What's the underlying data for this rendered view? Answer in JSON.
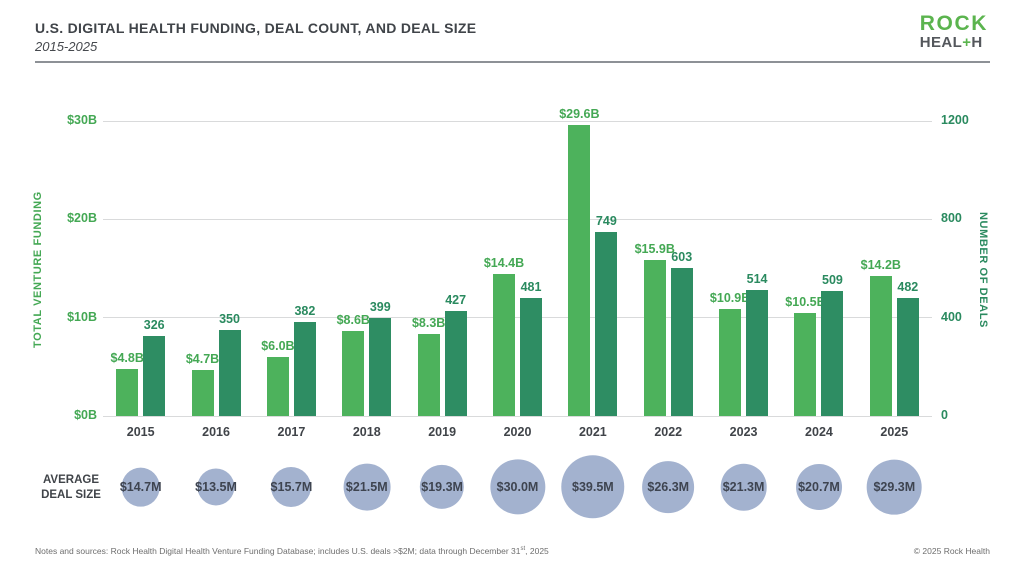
{
  "header": {
    "title": "U.S. DIGITAL HEALTH FUNDING, DEAL COUNT, AND DEAL SIZE",
    "subtitle": "2015-2025",
    "logo": {
      "line1": "ROCK",
      "line2_pre": "HEAL",
      "line2_plus": "+",
      "line2_post": "H"
    }
  },
  "chart_data": {
    "type": "bar",
    "title": "U.S. DIGITAL HEALTH FUNDING, DEAL COUNT, AND DEAL SIZE",
    "subtitle": "2015-2025",
    "categories": [
      "2015",
      "2016",
      "2017",
      "2018",
      "2019",
      "2020",
      "2021",
      "2022",
      "2023",
      "2024",
      "2025"
    ],
    "series": [
      {
        "name": "Total venture funding",
        "axis": "left",
        "unit": "$B",
        "values": [
          4.8,
          4.7,
          6.0,
          8.6,
          8.3,
          14.4,
          29.6,
          15.9,
          10.9,
          10.5,
          14.2
        ],
        "labels": [
          "$4.8B",
          "$4.7B",
          "$6.0B",
          "$8.6B",
          "$8.3B",
          "$14.4B",
          "$29.6B",
          "$15.9B",
          "$10.9B",
          "$10.5B",
          "$14.2B"
        ],
        "color": "#4db25c"
      },
      {
        "name": "Number of deals",
        "axis": "right",
        "unit": "deals",
        "values": [
          326,
          350,
          382,
          399,
          427,
          481,
          749,
          603,
          514,
          509,
          482
        ],
        "labels": [
          "326",
          "350",
          "382",
          "399",
          "427",
          "481",
          "749",
          "603",
          "514",
          "509",
          "482"
        ],
        "color": "#2e8d63"
      },
      {
        "name": "Average deal size",
        "type": "bubble",
        "unit": "$M",
        "values": [
          14.7,
          13.5,
          15.7,
          21.5,
          19.3,
          30.0,
          39.5,
          26.3,
          21.3,
          20.7,
          29.3
        ],
        "labels": [
          "$14.7M",
          "$13.5M",
          "$15.7M",
          "$21.5M",
          "$19.3M",
          "$30.0M",
          "$39.5M",
          "$26.3M",
          "$21.3M",
          "$20.7M",
          "$29.3M"
        ],
        "color": "#a3b2cf"
      }
    ],
    "left_axis": {
      "title": "TOTAL VENTURE FUNDING",
      "max": 30,
      "ticks": [
        {
          "label": "$0B",
          "value": 0
        },
        {
          "label": "$10B",
          "value": 10
        },
        {
          "label": "$20B",
          "value": 20
        },
        {
          "label": "$30B",
          "value": 30
        }
      ]
    },
    "right_axis": {
      "title": "NUMBER OF DEALS",
      "max": 1200,
      "ticks": [
        {
          "label": "0",
          "value": 0
        },
        {
          "label": "400",
          "value": 400
        },
        {
          "label": "800",
          "value": 800
        },
        {
          "label": "1200",
          "value": 1200
        }
      ]
    },
    "grid": true,
    "legend_position": "none",
    "bubble_row_label": [
      "AVERAGE",
      "DEAL SIZE"
    ]
  },
  "footer": {
    "notes_main": "Notes and sources: Rock Health Digital Health Venture Funding Database; includes U.S. deals >$2M; data through December 31",
    "notes_sup": "st",
    "notes_end": ", 2025",
    "copyright": "© 2025 Rock Health"
  }
}
